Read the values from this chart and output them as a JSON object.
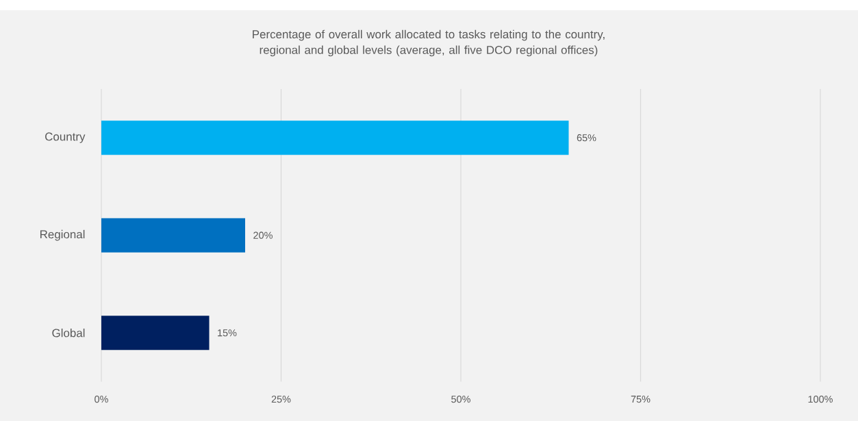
{
  "chart_data": {
    "type": "bar",
    "orientation": "horizontal",
    "title": "Percentage of overall work allocated to tasks relating to the country, regional and global levels (average, all five DCO regional offices)",
    "categories": [
      "Country",
      "Regional",
      "Global"
    ],
    "values": [
      65,
      20,
      15
    ],
    "colors": [
      "#00b0f0",
      "#0070c0",
      "#002060"
    ],
    "value_labels": [
      "65%",
      "20%",
      "15%"
    ],
    "xlim": [
      0,
      100
    ],
    "xticks": [
      {
        "value": 0,
        "label": "0%"
      },
      {
        "value": 25,
        "label": "25%"
      },
      {
        "value": 50,
        "label": "50%"
      },
      {
        "value": 75,
        "label": "75%"
      },
      {
        "value": 100,
        "label": "100%"
      }
    ],
    "grid": "x"
  }
}
